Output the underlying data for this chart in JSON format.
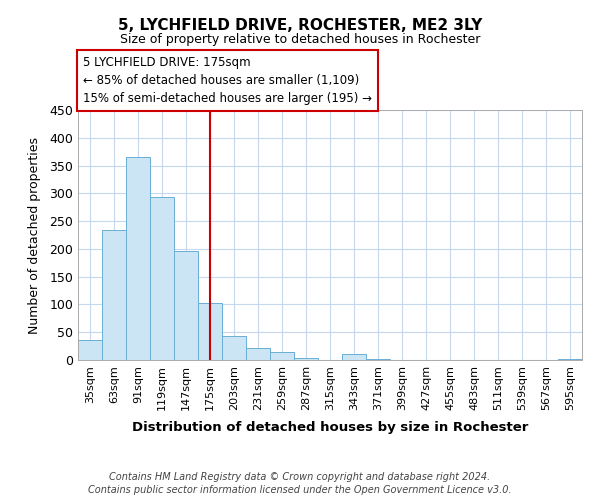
{
  "title": "5, LYCHFIELD DRIVE, ROCHESTER, ME2 3LY",
  "subtitle": "Size of property relative to detached houses in Rochester",
  "xlabel": "Distribution of detached houses by size in Rochester",
  "ylabel": "Number of detached properties",
  "bar_color": "#cce5f5",
  "bar_edge_color": "#6aaed6",
  "vline_color": "#cc0000",
  "vline_x": 5,
  "categories": [
    "35sqm",
    "63sqm",
    "91sqm",
    "119sqm",
    "147sqm",
    "175sqm",
    "203sqm",
    "231sqm",
    "259sqm",
    "287sqm",
    "315sqm",
    "343sqm",
    "371sqm",
    "399sqm",
    "427sqm",
    "455sqm",
    "483sqm",
    "511sqm",
    "539sqm",
    "567sqm",
    "595sqm"
  ],
  "values": [
    36,
    234,
    365,
    293,
    197,
    103,
    44,
    22,
    14,
    4,
    0,
    10,
    1,
    0,
    0,
    0,
    0,
    0,
    0,
    0,
    1
  ],
  "ylim": [
    0,
    450
  ],
  "yticks": [
    0,
    50,
    100,
    150,
    200,
    250,
    300,
    350,
    400,
    450
  ],
  "annotation_title": "5 LYCHFIELD DRIVE: 175sqm",
  "annotation_line1": "← 85% of detached houses are smaller (1,109)",
  "annotation_line2": "15% of semi-detached houses are larger (195) →",
  "annotation_box_color": "#ffffff",
  "annotation_box_edge_color": "#cc0000",
  "footer_line1": "Contains HM Land Registry data © Crown copyright and database right 2024.",
  "footer_line2": "Contains public sector information licensed under the Open Government Licence v3.0.",
  "background_color": "#ffffff",
  "grid_color": "#c8d8ec"
}
